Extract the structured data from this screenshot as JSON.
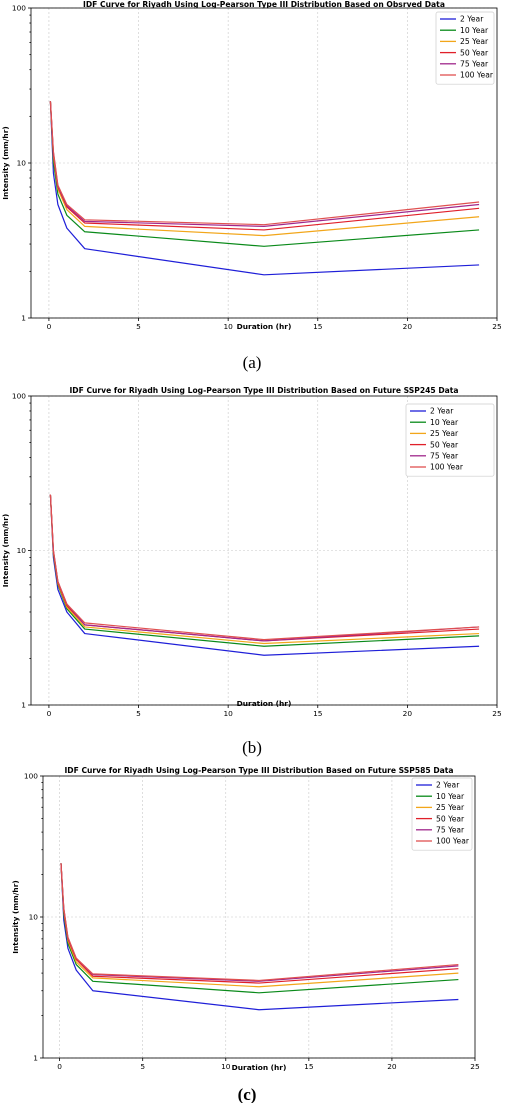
{
  "chart_data": [
    {
      "type": "line",
      "title": "IDF Curve for Riyadh Using Log-Pearson Type III Distribution Based on Obsrved Data",
      "xlabel": "Duration (hr)",
      "ylabel": "Intensity (mm/hr)",
      "caption": "(a)",
      "xlim": [
        -1.0,
        25.0
      ],
      "ylim": [
        1,
        100
      ],
      "yscale": "log",
      "x_ticks": [
        0,
        5,
        10,
        15,
        20,
        25
      ],
      "y_ticks": [
        1,
        10,
        100
      ],
      "grid": true,
      "legend_position": "top-right",
      "x": [
        0.083,
        0.25,
        0.5,
        1,
        2,
        12,
        24
      ],
      "series": [
        {
          "name": "2 Year",
          "color": "#1f1fd8",
          "values": [
            25.0,
            8.6,
            5.4,
            3.8,
            2.8,
            1.9,
            2.2
          ]
        },
        {
          "name": "10 Year",
          "color": "#0a8a1a",
          "values": [
            25.0,
            10.2,
            6.3,
            4.6,
            3.6,
            2.9,
            3.7
          ]
        },
        {
          "name": "25 Year",
          "color": "#f2a61a",
          "values": [
            25.0,
            11.0,
            6.8,
            5.0,
            3.9,
            3.4,
            4.5
          ]
        },
        {
          "name": "50 Year",
          "color": "#e0202a",
          "values": [
            25.0,
            11.4,
            7.0,
            5.2,
            4.1,
            3.7,
            5.1
          ]
        },
        {
          "name": "75 Year",
          "color": "#a0288c",
          "values": [
            25.0,
            11.7,
            7.1,
            5.3,
            4.2,
            3.9,
            5.4
          ]
        },
        {
          "name": "100 Year",
          "color": "#e05050",
          "values": [
            25.0,
            11.9,
            7.2,
            5.4,
            4.3,
            4.0,
            5.6
          ]
        }
      ]
    },
    {
      "type": "line",
      "title": "IDF Curve for Riyadh Using Log-Pearson Type III Distribution Based on Future SSP245 Data",
      "xlabel": "Duration (hr)",
      "ylabel": "Intensity (mm/hr)",
      "caption": "(b)",
      "xlim": [
        -1.0,
        25.0
      ],
      "ylim": [
        1,
        100
      ],
      "yscale": "log",
      "x_ticks": [
        0,
        5,
        10,
        15,
        20,
        25
      ],
      "y_ticks": [
        1,
        10,
        100
      ],
      "grid": true,
      "legend_position": "top-right",
      "x": [
        0.083,
        0.25,
        0.5,
        1,
        2,
        12,
        24
      ],
      "series": [
        {
          "name": "2 Year",
          "color": "#1f1fd8",
          "values": [
            23.0,
            9.0,
            5.6,
            4.0,
            2.9,
            2.1,
            2.4
          ]
        },
        {
          "name": "10 Year",
          "color": "#0a8a1a",
          "values": [
            23.0,
            9.5,
            6.0,
            4.2,
            3.1,
            2.4,
            2.8
          ]
        },
        {
          "name": "25 Year",
          "color": "#f2a61a",
          "values": [
            23.0,
            9.7,
            6.1,
            4.3,
            3.2,
            2.5,
            2.9
          ]
        },
        {
          "name": "50 Year",
          "color": "#e0202a",
          "values": [
            23.0,
            9.9,
            6.2,
            4.4,
            3.3,
            2.6,
            3.1
          ]
        },
        {
          "name": "75 Year",
          "color": "#a0288c",
          "values": [
            23.0,
            10.0,
            6.3,
            4.5,
            3.3,
            2.6,
            3.2
          ]
        },
        {
          "name": "100 Year",
          "color": "#e05050",
          "values": [
            23.0,
            10.1,
            6.3,
            4.5,
            3.4,
            2.65,
            3.2
          ]
        }
      ]
    },
    {
      "type": "line",
      "title": "IDF Curve for Riyadh Using Log-Pearson Type III Distribution Based on Future SSP585 Data",
      "xlabel": "Duration (hr)",
      "ylabel": "Intensity (mm/hr)",
      "caption": "(c)",
      "xlim": [
        -1.0,
        25.0
      ],
      "ylim": [
        1,
        100
      ],
      "yscale": "log",
      "x_ticks": [
        0,
        5,
        10,
        15,
        20,
        25
      ],
      "y_ticks": [
        1,
        10,
        100
      ],
      "grid": true,
      "legend_position": "top-right",
      "x": [
        0.083,
        0.25,
        0.5,
        1,
        2,
        12,
        24
      ],
      "series": [
        {
          "name": "2 Year",
          "color": "#1f1fd8",
          "values": [
            24.0,
            9.5,
            6.0,
            4.2,
            3.0,
            2.2,
            2.6
          ]
        },
        {
          "name": "10 Year",
          "color": "#0a8a1a",
          "values": [
            24.0,
            10.5,
            6.5,
            4.6,
            3.5,
            2.9,
            3.6
          ]
        },
        {
          "name": "25 Year",
          "color": "#f2a61a",
          "values": [
            24.0,
            11.0,
            6.8,
            4.8,
            3.7,
            3.2,
            4.0
          ]
        },
        {
          "name": "50 Year",
          "color": "#e0202a",
          "values": [
            24.0,
            11.3,
            7.0,
            5.0,
            3.8,
            3.4,
            4.3
          ]
        },
        {
          "name": "75 Year",
          "color": "#a0288c",
          "values": [
            24.0,
            11.5,
            7.1,
            5.1,
            3.9,
            3.5,
            4.5
          ]
        },
        {
          "name": "100 Year",
          "color": "#e05050",
          "values": [
            24.0,
            11.6,
            7.2,
            5.1,
            3.95,
            3.55,
            4.6
          ]
        }
      ]
    }
  ]
}
